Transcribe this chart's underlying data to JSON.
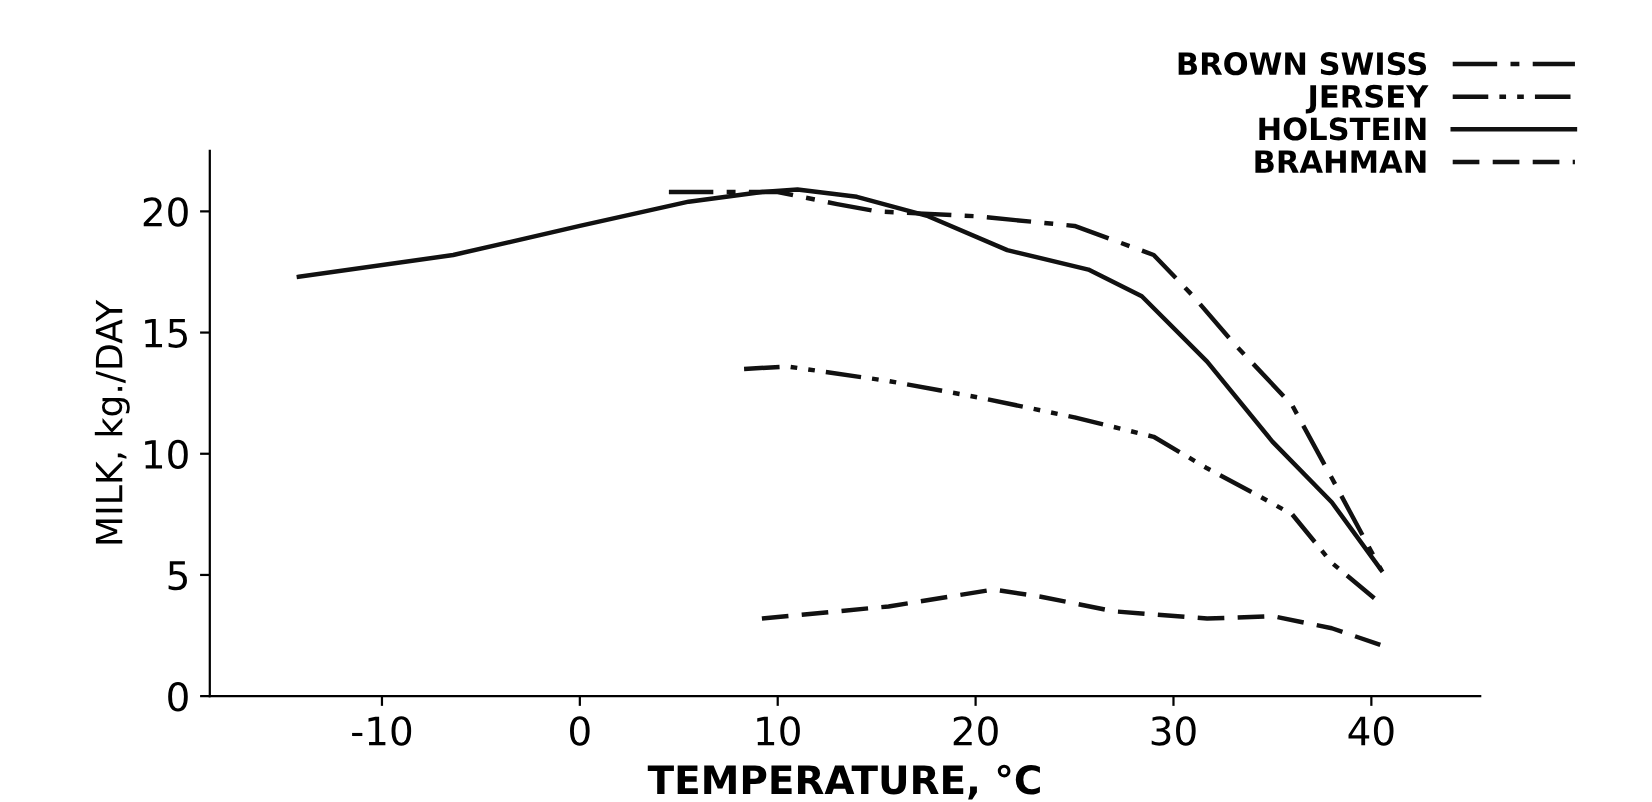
{
  "chart_data": {
    "type": "line",
    "xlabel": "TEMPERATURE, °C",
    "ylabel": "MILK, kg./DAY",
    "xlim": [
      -18.7,
      45.5
    ],
    "ylim": [
      0,
      22.5
    ],
    "xticks": [
      -10,
      0,
      10,
      20,
      30,
      40
    ],
    "yticks": [
      0,
      5,
      10,
      15,
      20
    ],
    "grid": false,
    "legend": "top right",
    "marker": "none",
    "series": [
      {
        "name": "BROWN SWISS",
        "color": "#111111",
        "line_style": "dashdot",
        "x": [
          4.5,
          7,
          10,
          13,
          15,
          20,
          25,
          29,
          31,
          33,
          36,
          38,
          40.5
        ],
        "values": [
          20.8,
          20.8,
          20.8,
          20.3,
          20.0,
          19.8,
          19.4,
          18.2,
          16.5,
          14.6,
          12,
          9,
          5.2
        ]
      },
      {
        "name": "JERSEY",
        "color": "#111111",
        "line_style": "dashdotdot",
        "x": [
          8.3,
          10.5,
          15.6,
          20.3,
          25,
          29,
          31.7,
          34,
          36,
          38,
          40.5
        ],
        "values": [
          13.5,
          13.6,
          13.0,
          12.3,
          11.5,
          10.7,
          9.4,
          8.4,
          7.5,
          5.5,
          3.8
        ]
      },
      {
        "name": "HOLSTEIN",
        "color": "#111111",
        "line_style": "solid",
        "x": [
          -14.2,
          -6.4,
          0,
          5.5,
          9.2,
          11,
          14,
          17.6,
          21.6,
          25.7,
          28.4,
          31.7,
          35,
          38,
          40.5
        ],
        "values": [
          17.3,
          18.2,
          19.4,
          20.4,
          20.8,
          20.9,
          20.6,
          19.8,
          18.4,
          17.6,
          16.5,
          13.8,
          10.5,
          8,
          5.2
        ]
      },
      {
        "name": "BRAHMAN",
        "color": "#111111",
        "line_style": "dashed",
        "x": [
          9.2,
          15.6,
          20.9,
          23.3,
          27,
          31.7,
          35,
          38,
          40.5
        ],
        "values": [
          3.2,
          3.7,
          4.4,
          4.1,
          3.5,
          3.2,
          3.3,
          2.8,
          2.1
        ]
      }
    ]
  }
}
